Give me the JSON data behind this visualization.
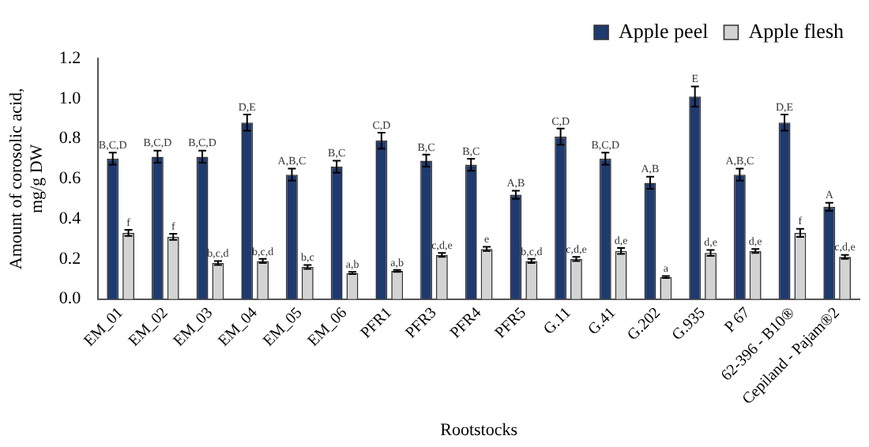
{
  "chart_data": {
    "type": "bar",
    "xlabel": "Rootstocks",
    "ylabel": "Amount of corosolic acid, mg/g DW",
    "categories": [
      "EM_01",
      "EM_02",
      "EM_03",
      "EM_04",
      "EM_05",
      "EM_06",
      "PFR1",
      "PFR3",
      "PFR4",
      "PFR5",
      "G.11",
      "G.41",
      "G.202",
      "G.935",
      "P 67",
      "62-396 - B10®",
      "Cepiland - Pajam®2"
    ],
    "series": [
      {
        "name": "Apple peel",
        "color": "#1f3a6e",
        "values": [
          0.7,
          0.71,
          0.71,
          0.88,
          0.62,
          0.66,
          0.79,
          0.69,
          0.67,
          0.52,
          0.81,
          0.7,
          0.58,
          1.01,
          0.62,
          0.88,
          0.46
        ],
        "errors": [
          0.03,
          0.03,
          0.03,
          0.04,
          0.03,
          0.03,
          0.04,
          0.03,
          0.03,
          0.02,
          0.04,
          0.03,
          0.03,
          0.05,
          0.03,
          0.04,
          0.02
        ],
        "value_labels": [
          "B,C,D",
          "B,C,D",
          "B,C,D",
          "D,E",
          "A,B,C",
          "B,C",
          "C,D",
          "B,C",
          "B,C",
          "A,B",
          "C,D",
          "B,C,D",
          "A,B",
          "E",
          "A,B,C",
          "D,E",
          "A"
        ]
      },
      {
        "name": "Apple flesh",
        "color": "#d3d3d3",
        "values": [
          0.33,
          0.31,
          0.18,
          0.19,
          0.16,
          0.13,
          0.14,
          0.22,
          0.25,
          0.19,
          0.2,
          0.24,
          0.11,
          0.23,
          0.24,
          0.33,
          0.21
        ],
        "errors": [
          0.015,
          0.015,
          0.01,
          0.01,
          0.01,
          0.005,
          0.005,
          0.01,
          0.01,
          0.01,
          0.01,
          0.015,
          0.005,
          0.015,
          0.01,
          0.02,
          0.01
        ],
        "value_labels": [
          "f",
          "f",
          "b,c,d",
          "b,c,d",
          "b,c",
          "a,b",
          "a,b",
          "c,d,e",
          "e",
          "b,c,d",
          "c,d,e",
          "d,e",
          "a",
          "d,e",
          "d,e",
          "f",
          "c,d,e"
        ]
      }
    ],
    "ylim": [
      0,
      1.2
    ],
    "yticks": [
      {
        "value": 0,
        "label": "0.0"
      },
      {
        "value": 0.2,
        "label": "0.2"
      },
      {
        "value": 0.4,
        "label": "0.4"
      },
      {
        "value": 0.6,
        "label": "0.6"
      },
      {
        "value": 0.8,
        "label": "0.8"
      },
      {
        "value": 1,
        "label": "1.0"
      },
      {
        "value": 1.2,
        "label": "1.2"
      }
    ],
    "legend": "top right",
    "grid": false
  }
}
